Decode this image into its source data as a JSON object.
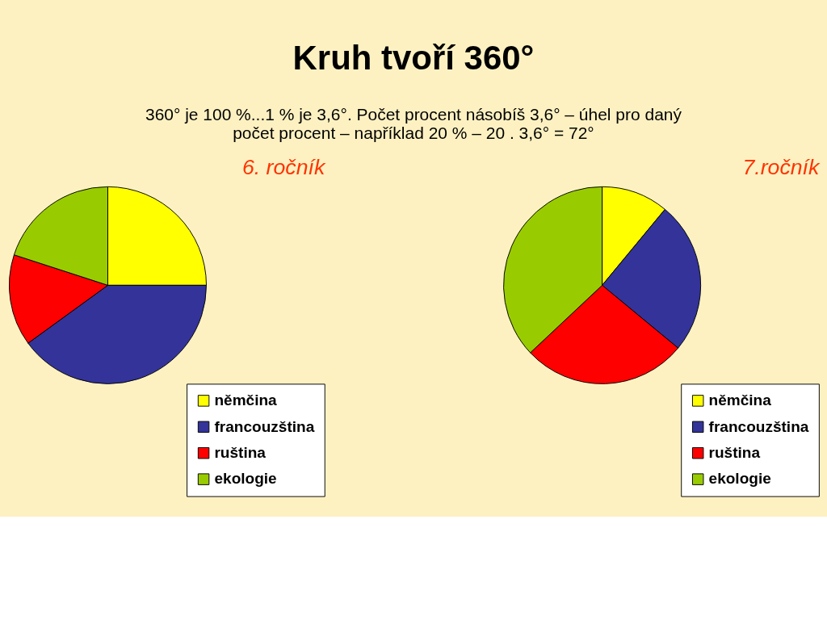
{
  "chart_data": [
    {
      "type": "pie",
      "title": "6. ročník",
      "annotations": [
        "Kruh tvoří 360°",
        "360° je 100 %...1 % je 3,6°. Počet procent násobíš 3,6° – úhel pro daný",
        "počet procent – například 20 % – 20 . 3,6° = 72°"
      ],
      "categories": [
        "němčina",
        "francouzština",
        "ruština",
        "ekologie"
      ],
      "values": [
        25,
        40,
        15,
        20
      ],
      "colors": [
        "#ffff00",
        "#333399",
        "#ff0000",
        "#99cc00"
      ],
      "legend": "bottom right"
    },
    {
      "type": "pie",
      "title": "7.ročník",
      "categories": [
        "němčina",
        "francouzština",
        "ruština",
        "ekologie"
      ],
      "values": [
        11,
        25,
        27,
        37
      ],
      "colors": [
        "#ffff00",
        "#333399",
        "#ff0000",
        "#99cc00"
      ],
      "legend": "bottom right"
    }
  ]
}
